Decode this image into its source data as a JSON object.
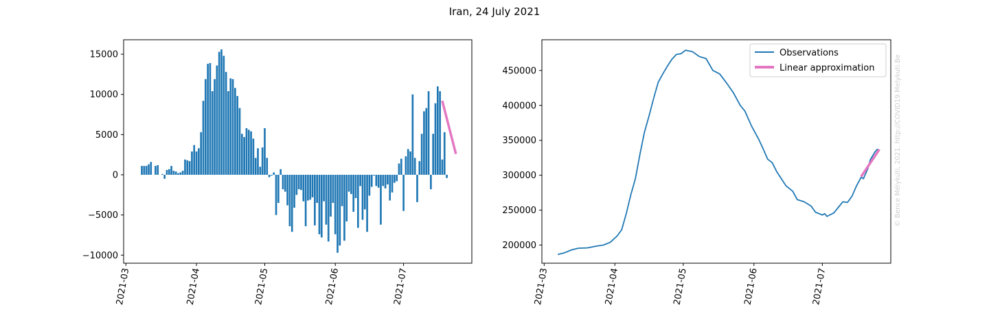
{
  "figure": {
    "title": "Iran, 24 July 2021",
    "watermark": "© Bence Mélykúti, 2021. http://COVID19.Melykuti.Be",
    "watermark_color": "#cccccc"
  },
  "chart_data": [
    {
      "type": "bar",
      "ylim": [
        -11000,
        16800
      ],
      "yticks": [
        -10000,
        -5000,
        0,
        5000,
        10000,
        15000
      ],
      "ytick_labels": [
        "−10000",
        "−5000",
        "0",
        "5000",
        "10000",
        "15000"
      ],
      "xlim": [
        "2021-02-28",
        "2021-07-31"
      ],
      "xticks": [
        "2021-03-01",
        "2021-04-01",
        "2021-05-01",
        "2021-06-01",
        "2021-07-01"
      ],
      "xtick_labels": [
        "2021-03",
        "2021-04",
        "2021-05",
        "2021-06",
        "2021-07"
      ],
      "bar_color": "#1f77b4",
      "x_start": "2021-03-08",
      "values": [
        1100,
        1100,
        1100,
        1300,
        1600,
        0,
        1100,
        1200,
        0,
        100,
        -500,
        600,
        700,
        1100,
        500,
        400,
        200,
        300,
        500,
        1900,
        1800,
        1700,
        2900,
        3700,
        2900,
        3300,
        5300,
        9200,
        11900,
        13800,
        13900,
        10400,
        11900,
        13600,
        15300,
        15600,
        14800,
        12800,
        10400,
        12000,
        11900,
        10800,
        9800,
        8300,
        5100,
        4700,
        5800,
        5600,
        5400,
        4500,
        2100,
        3300,
        1000,
        3400,
        5800,
        2100,
        -300,
        -100,
        300,
        -5000,
        -3500,
        700,
        -1800,
        -2100,
        -3800,
        -6400,
        -7100,
        -4100,
        -2500,
        -1800,
        -1900,
        -3300,
        -6400,
        -3200,
        -3100,
        -2800,
        -6300,
        -3500,
        -7400,
        -7800,
        -3300,
        -6200,
        -8300,
        -5200,
        -3500,
        -7400,
        -9700,
        -8800,
        -3900,
        -8200,
        -5800,
        -2100,
        -2400,
        -4600,
        -2900,
        -6600,
        -1400,
        -5600,
        -4300,
        -7100,
        -2600,
        -1500,
        -100,
        -1400,
        -1600,
        -6200,
        -1400,
        -1700,
        -1200,
        -3200,
        -2200,
        -1000,
        -800,
        1400,
        2000,
        -4500,
        2300,
        3200,
        2900,
        10000,
        2100,
        -3400,
        1700,
        5100,
        7900,
        8300,
        10400,
        -1800,
        5100,
        8900,
        11000,
        10400,
        1900,
        5300,
        -400
      ],
      "approx": {
        "color": "#e377c2",
        "x": [
          "2021-07-18",
          "2021-07-24"
        ],
        "y": [
          9200,
          2600
        ]
      }
    },
    {
      "type": "line",
      "ylim": [
        174000,
        494000
      ],
      "yticks": [
        200000,
        250000,
        300000,
        350000,
        400000,
        450000
      ],
      "ytick_labels": [
        "200000",
        "250000",
        "300000",
        "350000",
        "400000",
        "450000"
      ],
      "xlim": [
        "2021-02-28",
        "2021-07-31"
      ],
      "xticks": [
        "2021-03-01",
        "2021-04-01",
        "2021-05-01",
        "2021-06-01",
        "2021-07-01"
      ],
      "xtick_labels": [
        "2021-03",
        "2021-04",
        "2021-05",
        "2021-06",
        "2021-07"
      ],
      "legend_position": "top-right",
      "series": [
        {
          "name": "Observations",
          "color": "#1f77b4",
          "points": [
            [
              "2021-03-07",
              186500
            ],
            [
              "2021-03-10",
              189000
            ],
            [
              "2021-03-13",
              193000
            ],
            [
              "2021-03-16",
              195500
            ],
            [
              "2021-03-20",
              196000
            ],
            [
              "2021-03-24",
              198500
            ],
            [
              "2021-03-27",
              200000
            ],
            [
              "2021-03-30",
              204000
            ],
            [
              "2021-04-02",
              213000
            ],
            [
              "2021-04-04",
              222000
            ],
            [
              "2021-04-06",
              245000
            ],
            [
              "2021-04-08",
              272000
            ],
            [
              "2021-04-10",
              295000
            ],
            [
              "2021-04-12",
              330000
            ],
            [
              "2021-04-14",
              362000
            ],
            [
              "2021-04-16",
              385000
            ],
            [
              "2021-04-18",
              410000
            ],
            [
              "2021-04-20",
              433000
            ],
            [
              "2021-04-22",
              445000
            ],
            [
              "2021-04-24",
              456000
            ],
            [
              "2021-04-26",
              466000
            ],
            [
              "2021-04-28",
              473000
            ],
            [
              "2021-04-30",
              474000
            ],
            [
              "2021-05-02",
              479000
            ],
            [
              "2021-05-05",
              477000
            ],
            [
              "2021-05-08",
              470000
            ],
            [
              "2021-05-11",
              467000
            ],
            [
              "2021-05-14",
              450000
            ],
            [
              "2021-05-17",
              445000
            ],
            [
              "2021-05-20",
              432000
            ],
            [
              "2021-05-23",
              418000
            ],
            [
              "2021-05-26",
              400000
            ],
            [
              "2021-05-28",
              392000
            ],
            [
              "2021-05-31",
              370000
            ],
            [
              "2021-06-03",
              352000
            ],
            [
              "2021-06-05",
              338000
            ],
            [
              "2021-06-07",
              323000
            ],
            [
              "2021-06-09",
              318000
            ],
            [
              "2021-06-11",
              305000
            ],
            [
              "2021-06-13",
              295000
            ],
            [
              "2021-06-15",
              285000
            ],
            [
              "2021-06-18",
              277000
            ],
            [
              "2021-06-20",
              265000
            ],
            [
              "2021-06-23",
              262000
            ],
            [
              "2021-06-26",
              256000
            ],
            [
              "2021-06-28",
              247000
            ],
            [
              "2021-07-01",
              243000
            ],
            [
              "2021-07-02",
              245000
            ],
            [
              "2021-07-03",
              241000
            ],
            [
              "2021-07-06",
              246000
            ],
            [
              "2021-07-08",
              254000
            ],
            [
              "2021-07-10",
              262000
            ],
            [
              "2021-07-12",
              261000
            ],
            [
              "2021-07-14",
              270000
            ],
            [
              "2021-07-16",
              285000
            ],
            [
              "2021-07-18",
              297000
            ],
            [
              "2021-07-19",
              295000
            ],
            [
              "2021-07-21",
              310000
            ],
            [
              "2021-07-22",
              322000
            ],
            [
              "2021-07-24",
              333000
            ],
            [
              "2021-07-25",
              337000
            ],
            [
              "2021-07-26",
              336000
            ]
          ]
        },
        {
          "name": "Linear approximation",
          "color": "#e377c2",
          "points": [
            [
              "2021-07-18",
              298000
            ],
            [
              "2021-07-26",
              337000
            ]
          ]
        }
      ]
    }
  ]
}
